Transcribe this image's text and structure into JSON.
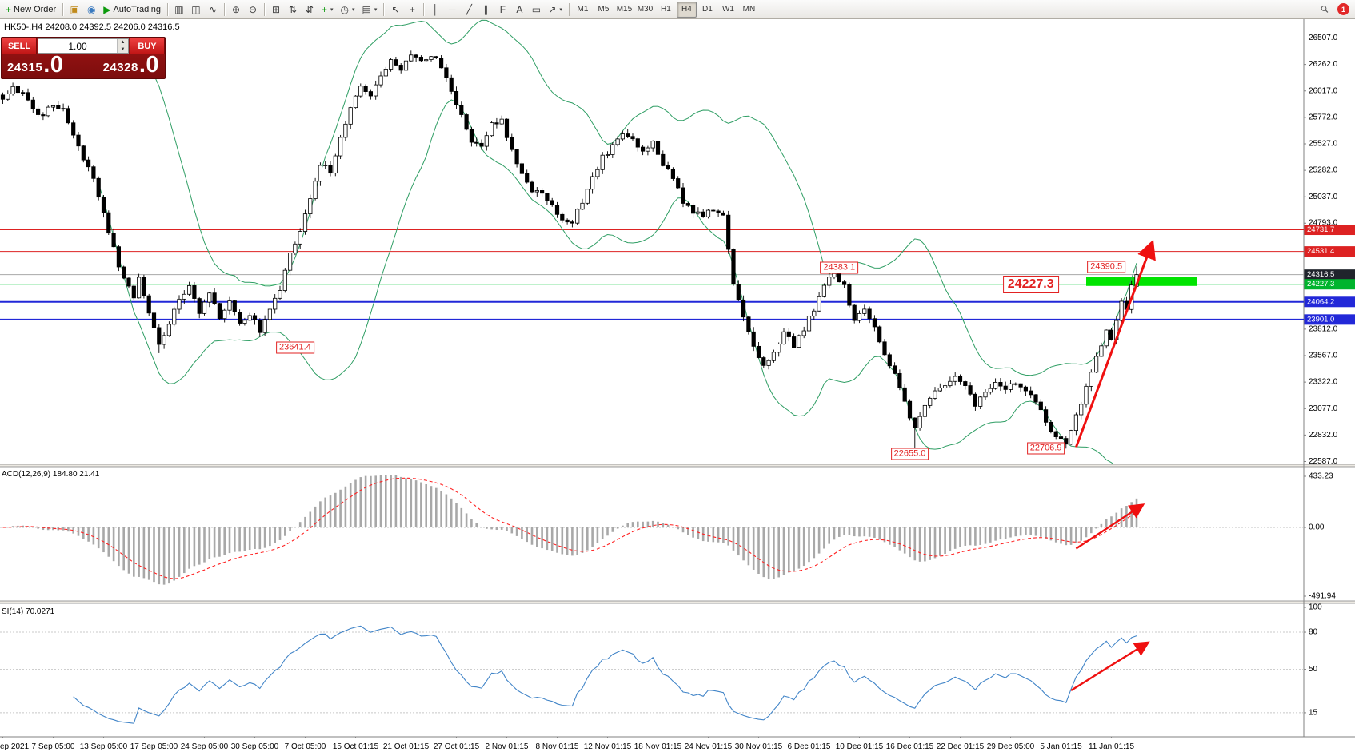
{
  "toolbar": {
    "caret_glyph": "▾",
    "notification_count": "1",
    "active_timeframe": "H4",
    "timeframes": [
      "M1",
      "M5",
      "M15",
      "M30",
      "H1",
      "H4",
      "D1",
      "W1",
      "MN"
    ],
    "items": [
      {
        "type": "button",
        "name": "new-order-button",
        "glyph": "+",
        "glyph_color": "#0c9a0c",
        "label": "New Order"
      },
      {
        "type": "sep"
      },
      {
        "type": "button",
        "name": "charts-window-icon",
        "glyph": "▣",
        "glyph_color": "#c08a1a"
      },
      {
        "type": "button",
        "name": "profile-icon",
        "glyph": "◉",
        "glyph_color": "#3a7abf"
      },
      {
        "type": "button",
        "name": "autotrading-button",
        "glyph": "▶",
        "glyph_color": "#0c9a0c",
        "label": "AutoTrading"
      },
      {
        "type": "sep"
      },
      {
        "type": "button",
        "name": "bar-chart-icon",
        "glyph": "▥"
      },
      {
        "type": "button",
        "name": "candlestick-chart-icon",
        "glyph": "◫"
      },
      {
        "type": "button",
        "name": "line-chart-icon",
        "glyph": "∿"
      },
      {
        "type": "sep"
      },
      {
        "type": "button",
        "name": "zoom-in-icon",
        "glyph": "⊕"
      },
      {
        "type": "button",
        "name": "zoom-out-icon",
        "glyph": "⊖"
      },
      {
        "type": "sep"
      },
      {
        "type": "button",
        "name": "tile-windows-icon",
        "glyph": "⊞"
      },
      {
        "type": "button",
        "name": "arrange-windows-icon",
        "glyph": "⇅"
      },
      {
        "type": "button",
        "name": "cascade-windows-icon",
        "glyph": "⇵"
      },
      {
        "type": "button",
        "name": "new-chart-icon",
        "glyph": "+",
        "glyph_color": "#0c9a0c",
        "caret": true
      },
      {
        "type": "button",
        "name": "period-icon",
        "glyph": "◷",
        "caret": true
      },
      {
        "type": "button",
        "name": "template-icon",
        "glyph": "▤",
        "caret": true
      },
      {
        "type": "sep"
      },
      {
        "type": "button",
        "name": "cursor-icon",
        "glyph": "↖"
      },
      {
        "type": "button",
        "name": "crosshair-icon",
        "glyph": "+"
      },
      {
        "type": "sep"
      },
      {
        "type": "button",
        "name": "vertical-line-icon",
        "glyph": "│"
      },
      {
        "type": "button",
        "name": "horizontal-line-icon",
        "glyph": "─"
      },
      {
        "type": "button",
        "name": "trendline-icon",
        "glyph": "╱"
      },
      {
        "type": "button",
        "name": "channel-icon",
        "glyph": "∥"
      },
      {
        "type": "button",
        "name": "fibonacci-icon",
        "glyph": "F"
      },
      {
        "type": "button",
        "name": "text-icon",
        "glyph": "A"
      },
      {
        "type": "button",
        "name": "label-icon",
        "glyph": "▭"
      },
      {
        "type": "button",
        "name": "arrows-tool-icon",
        "glyph": "↗",
        "caret": true
      },
      {
        "type": "sep"
      }
    ]
  },
  "chart_header": {
    "text": "HK50-,H4  24208.0 24392.5 24206.0 24316.5"
  },
  "trade_panel": {
    "sell_label": "SELL",
    "buy_label": "BUY",
    "volume": "1.00",
    "spin_up_glyph": "▲",
    "spin_down_glyph": "▼",
    "sell_price": {
      "main": "24315",
      "big": ".0"
    },
    "buy_price": {
      "main": "24328",
      "big": ".0"
    }
  },
  "price_axis": {
    "tick_labels": [
      "26507.0",
      "26262.0",
      "26017.0",
      "25772.0",
      "25527.0",
      "25282.0",
      "25037.0",
      "24793.0",
      "23812.0",
      "23567.0",
      "23322.0",
      "23077.0",
      "22832.0",
      "22587.0"
    ]
  },
  "macd_panel": {
    "label": "ACD(12,26,9) 184.80 21.41",
    "axis_labels": [
      "433.23",
      "0.00",
      "-491.94"
    ]
  },
  "rsi_panel": {
    "label": "SI(14) 70.0271",
    "axis_labels": [
      "100",
      "80",
      "50",
      "15"
    ],
    "levels": [
      80,
      50,
      15
    ]
  },
  "time_axis": {
    "candles_per_tick": 10,
    "labels": [
      "ep 2021",
      "7 Sep 05:00",
      "13 Sep 05:00",
      "17 Sep 05:00",
      "24 Sep 05:00",
      "30 Sep 05:00",
      "7 Oct 05:00",
      "15 Oct 01:15",
      "21 Oct 01:15",
      "27 Oct 01:15",
      "2 Nov 01:15",
      "8 Nov 01:15",
      "12 Nov 01:15",
      "18 Nov 01:15",
      "24 Nov 01:15",
      "30 Nov 01:15",
      "6 Dec 01:15",
      "10 Dec 01:15",
      "16 Dec 01:15",
      "22 Dec 01:15",
      "29 Dec 05:00",
      "5 Jan 01:15",
      "11 Jan 01:15"
    ]
  },
  "chart_data": {
    "type": "candlestick",
    "symbol": "HK50-",
    "timeframe": "H4",
    "current_ohlc": {
      "open": 24208.0,
      "high": 24392.5,
      "low": 24206.0,
      "close": 24316.5
    },
    "ylim": [
      22587.0,
      26507.0
    ],
    "y_tick_step": 245.0,
    "num_candles": 226,
    "close_waypoints": [
      [
        0,
        25940
      ],
      [
        2,
        26060
      ],
      [
        4,
        25980
      ],
      [
        6,
        25840
      ],
      [
        8,
        25780
      ],
      [
        10,
        25900
      ],
      [
        12,
        25860
      ],
      [
        14,
        25600
      ],
      [
        16,
        25380
      ],
      [
        18,
        25200
      ],
      [
        20,
        24880
      ],
      [
        22,
        24550
      ],
      [
        24,
        24260
      ],
      [
        26,
        24120
      ],
      [
        27,
        24310
      ],
      [
        29,
        23950
      ],
      [
        31,
        23660
      ],
      [
        33,
        23870
      ],
      [
        35,
        24080
      ],
      [
        37,
        24230
      ],
      [
        39,
        23980
      ],
      [
        41,
        24150
      ],
      [
        43,
        23930
      ],
      [
        45,
        24060
      ],
      [
        47,
        23870
      ],
      [
        49,
        23940
      ],
      [
        51,
        23800
      ],
      [
        53,
        24000
      ],
      [
        55,
        24180
      ],
      [
        57,
        24500
      ],
      [
        59,
        24740
      ],
      [
        61,
        25030
      ],
      [
        63,
        25340
      ],
      [
        65,
        25280
      ],
      [
        67,
        25600
      ],
      [
        69,
        25840
      ],
      [
        71,
        26050
      ],
      [
        73,
        25980
      ],
      [
        75,
        26180
      ],
      [
        77,
        26300
      ],
      [
        79,
        26220
      ],
      [
        81,
        26340
      ],
      [
        83,
        26280
      ],
      [
        85,
        26360
      ],
      [
        87,
        26240
      ],
      [
        89,
        26020
      ],
      [
        91,
        25780
      ],
      [
        93,
        25560
      ],
      [
        95,
        25520
      ],
      [
        97,
        25700
      ],
      [
        99,
        25740
      ],
      [
        101,
        25480
      ],
      [
        103,
        25260
      ],
      [
        105,
        25100
      ],
      [
        107,
        25060
      ],
      [
        109,
        24960
      ],
      [
        111,
        24830
      ],
      [
        113,
        24810
      ],
      [
        115,
        25000
      ],
      [
        117,
        25220
      ],
      [
        119,
        25400
      ],
      [
        121,
        25500
      ],
      [
        123,
        25620
      ],
      [
        125,
        25580
      ],
      [
        127,
        25460
      ],
      [
        129,
        25540
      ],
      [
        131,
        25320
      ],
      [
        133,
        25220
      ],
      [
        135,
        25000
      ],
      [
        137,
        24900
      ],
      [
        139,
        24860
      ],
      [
        141,
        24920
      ],
      [
        143,
        24860
      ],
      [
        145,
        24240
      ],
      [
        147,
        23900
      ],
      [
        149,
        23640
      ],
      [
        151,
        23470
      ],
      [
        153,
        23600
      ],
      [
        155,
        23780
      ],
      [
        157,
        23650
      ],
      [
        159,
        23820
      ],
      [
        161,
        24000
      ],
      [
        163,
        24220
      ],
      [
        165,
        24340
      ],
      [
        167,
        24200
      ],
      [
        169,
        23900
      ],
      [
        171,
        23980
      ],
      [
        173,
        23820
      ],
      [
        175,
        23600
      ],
      [
        177,
        23380
      ],
      [
        179,
        23120
      ],
      [
        181,
        22900
      ],
      [
        183,
        23080
      ],
      [
        185,
        23220
      ],
      [
        187,
        23300
      ],
      [
        189,
        23360
      ],
      [
        191,
        23270
      ],
      [
        193,
        23100
      ],
      [
        195,
        23220
      ],
      [
        197,
        23320
      ],
      [
        199,
        23280
      ],
      [
        201,
        23320
      ],
      [
        203,
        23250
      ],
      [
        205,
        23150
      ],
      [
        207,
        22950
      ],
      [
        209,
        22800
      ],
      [
        211,
        22770
      ],
      [
        213,
        23000
      ],
      [
        215,
        23280
      ],
      [
        217,
        23550
      ],
      [
        219,
        23780
      ],
      [
        220,
        23720
      ],
      [
        221,
        23900
      ],
      [
        222,
        24060
      ],
      [
        223,
        23980
      ],
      [
        224,
        24200
      ],
      [
        225,
        24316.5
      ]
    ],
    "wick_low_overrides": {
      "31": 23590.0,
      "181": 22655.0,
      "211": 22706.9
    },
    "bollinger": {
      "period": 20,
      "deviation": 2.0,
      "color": "#2f9e64"
    },
    "horizontal_lines": [
      {
        "price": 24731.7,
        "color": "#dd2222",
        "width": 1,
        "tag": "24731.7",
        "tag_color": "#dd2222"
      },
      {
        "price": 24531.4,
        "color": "#dd2222",
        "width": 1,
        "tag": "24531.4",
        "tag_color": "#dd2222"
      },
      {
        "price": 24316.5,
        "color": "#a8a8a8",
        "width": 1,
        "tag": "24316.5",
        "tag_color": "#20242c"
      },
      {
        "price": 24227.3,
        "color": "#00c832",
        "width": 1,
        "tag": "24227.3",
        "tag_color": "#00b42d"
      },
      {
        "price": 24064.2,
        "color": "#2228d8",
        "width": 2,
        "tag": "24064.2",
        "tag_color": "#2228d8"
      },
      {
        "price": 23901.0,
        "color": "#2228d8",
        "width": 2,
        "tag": "23901.0",
        "tag_color": "#2228d8"
      }
    ],
    "highlight_zone": {
      "from_index": 215,
      "to_index": 237,
      "price_top": 24292.0,
      "price_bottom": 24212.0,
      "color": "#00e400"
    },
    "price_callouts": [
      {
        "text": "23641.4",
        "index": 58,
        "price": 23641.4
      },
      {
        "text": "24383.1",
        "index": 166,
        "price": 24383.1
      },
      {
        "text": "24227.3",
        "index": 204,
        "price": 24227.3,
        "large": true
      },
      {
        "text": "24390.5",
        "index": 219,
        "price": 24390.5
      },
      {
        "text": "22655.0",
        "index": 180,
        "price": 22655.0
      },
      {
        "text": "22706.9",
        "index": 207,
        "price": 22706.9
      }
    ],
    "trend_arrows": [
      {
        "pane": "main",
        "from_index": 213,
        "from_price": 22720.0,
        "to_index": 228,
        "to_price": 24600.0
      },
      {
        "pane": "macd",
        "from_index": 213,
        "from_frac": 0.61,
        "to_index": 226,
        "to_frac": 0.29
      },
      {
        "pane": "rsi",
        "from_index": 212,
        "from_value": 33.0,
        "to_index": 227,
        "to_value": 71.0
      }
    ],
    "macd": {
      "fast": 12,
      "slow": 26,
      "signal": 9,
      "current_values": [
        184.8,
        21.41
      ],
      "histogram_color": "#a8a8a8",
      "signal_color": "#ff2222"
    },
    "rsi": {
      "period": 14,
      "current_value": 70.0271,
      "color": "#4285c8"
    }
  }
}
